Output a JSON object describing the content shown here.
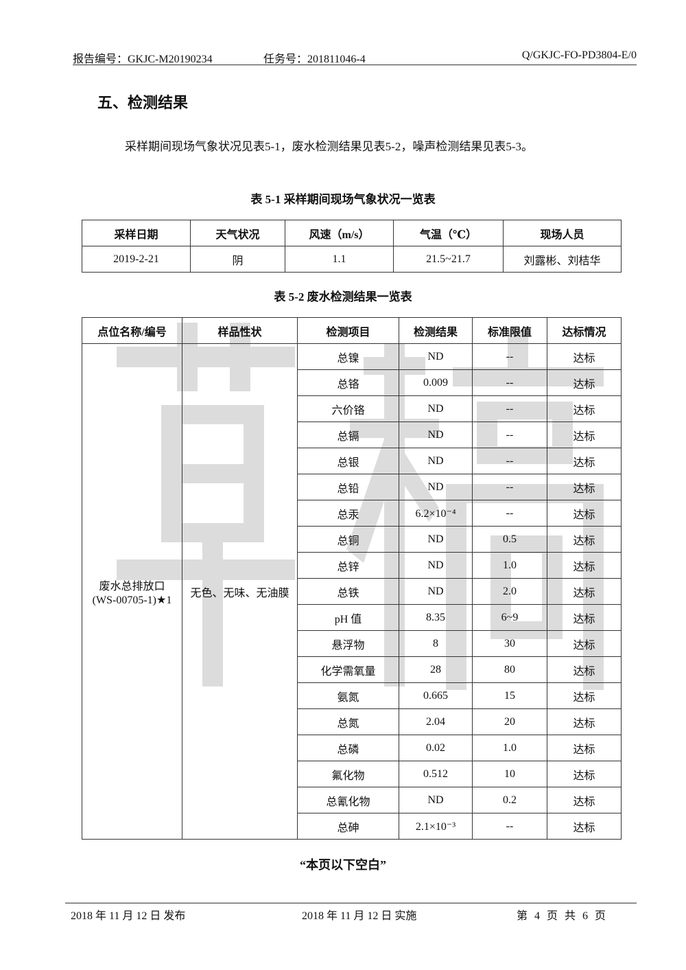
{
  "header": {
    "report_no": "报告编号：GKJC-M20190234",
    "task_no": "任务号：201811046-4",
    "doc_code": "Q/GKJC-FO-PD3804-E/0"
  },
  "watermark": "草稿",
  "section_title": "五、检测结果",
  "intro": "采样期间现场气象状况见表5-1，废水检测结果见表5-2，噪声检测结果见表5-3。",
  "table1": {
    "caption": "表 5-1   采样期间现场气象状况一览表",
    "headers": [
      "采样日期",
      "天气状况",
      "风速（m/s）",
      "气温（℃）",
      "现场人员"
    ],
    "row": [
      "2019-2-21",
      "阴",
      "1.1",
      "21.5~21.7",
      "刘露彬、刘桔华"
    ]
  },
  "table2": {
    "caption": "表 5-2   废水检测结果一览表",
    "headers": [
      "点位名称/编号",
      "样品性状",
      "检测项目",
      "检测结果",
      "标准限值",
      "达标情况"
    ],
    "site": "废水总排放口(WS-00705-1)★1",
    "sample": "无色、无味、无油膜",
    "rows": [
      [
        "总镍",
        "ND",
        "--",
        "达标"
      ],
      [
        "总铬",
        "0.009",
        "--",
        "达标"
      ],
      [
        "六价铬",
        "ND",
        "--",
        "达标"
      ],
      [
        "总镉",
        "ND",
        "--",
        "达标"
      ],
      [
        "总银",
        "ND",
        "--",
        "达标"
      ],
      [
        "总铅",
        "ND",
        "--",
        "达标"
      ],
      [
        "总汞",
        "6.2×10⁻⁴",
        "--",
        "达标"
      ],
      [
        "总铜",
        "ND",
        "0.5",
        "达标"
      ],
      [
        "总锌",
        "ND",
        "1.0",
        "达标"
      ],
      [
        "总铁",
        "ND",
        "2.0",
        "达标"
      ],
      [
        "pH 值",
        "8.35",
        "6~9",
        "达标"
      ],
      [
        "悬浮物",
        "8",
        "30",
        "达标"
      ],
      [
        "化学需氧量",
        "28",
        "80",
        "达标"
      ],
      [
        "氨氮",
        "0.665",
        "15",
        "达标"
      ],
      [
        "总氮",
        "2.04",
        "20",
        "达标"
      ],
      [
        "总磷",
        "0.02",
        "1.0",
        "达标"
      ],
      [
        "氟化物",
        "0.512",
        "10",
        "达标"
      ],
      [
        "总氰化物",
        "ND",
        "0.2",
        "达标"
      ],
      [
        "总砷",
        "2.1×10⁻³",
        "--",
        "达标"
      ]
    ]
  },
  "blank_note": "“本页以下空白”",
  "footer": {
    "issued": "2018 年 11 月 12 日  发布",
    "effective": "2018 年 11 月 12 日  实施",
    "page": "第 4 页 共 6 页"
  }
}
